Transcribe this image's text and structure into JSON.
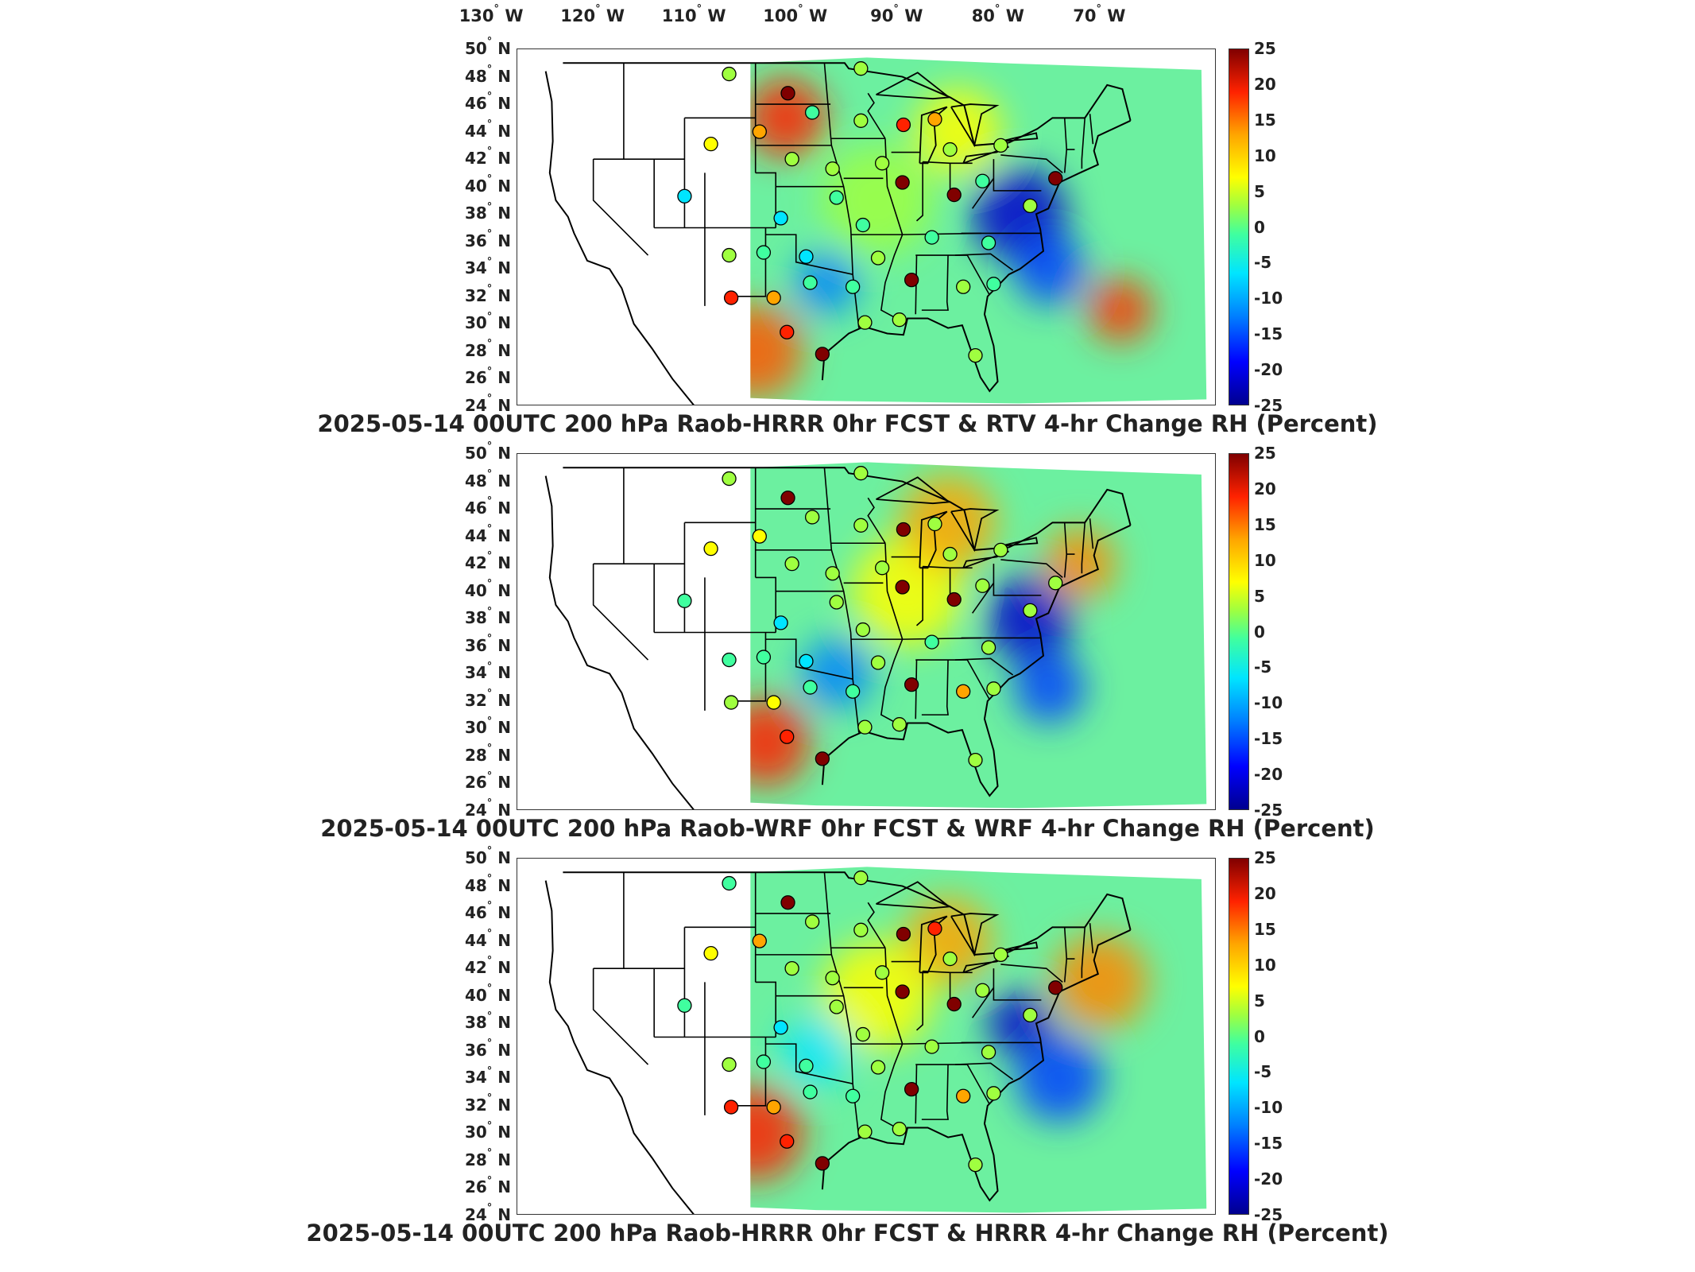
{
  "longitude_labels": [
    {
      "deg": "130",
      "hem": "W"
    },
    {
      "deg": "120",
      "hem": "W"
    },
    {
      "deg": "110",
      "hem": "W"
    },
    {
      "deg": "100",
      "hem": "W"
    },
    {
      "deg": "90",
      "hem": "W"
    },
    {
      "deg": "80",
      "hem": "W"
    },
    {
      "deg": "70",
      "hem": "W"
    }
  ],
  "latitude_labels": [
    {
      "deg": "50",
      "hem": "N"
    },
    {
      "deg": "48",
      "hem": "N"
    },
    {
      "deg": "46",
      "hem": "N"
    },
    {
      "deg": "44",
      "hem": "N"
    },
    {
      "deg": "42",
      "hem": "N"
    },
    {
      "deg": "40",
      "hem": "N"
    },
    {
      "deg": "38",
      "hem": "N"
    },
    {
      "deg": "36",
      "hem": "N"
    },
    {
      "deg": "34",
      "hem": "N"
    },
    {
      "deg": "32",
      "hem": "N"
    },
    {
      "deg": "30",
      "hem": "N"
    },
    {
      "deg": "28",
      "hem": "N"
    },
    {
      "deg": "26",
      "hem": "N"
    },
    {
      "deg": "24",
      "hem": "N"
    }
  ],
  "colorbar": {
    "ticks": [
      "25",
      "20",
      "15",
      "10",
      "5",
      "0",
      "-5",
      "-10",
      "-15",
      "-20",
      "-25"
    ],
    "min": -25,
    "max": 25,
    "colors": [
      "#00008f",
      "#0000ff",
      "#0080ff",
      "#00e5ff",
      "#40ff9f",
      "#9fff40",
      "#ffff00",
      "#ffa500",
      "#ff2200",
      "#800000"
    ]
  },
  "panels": [
    {
      "title": "2025-05-14 00UTC 200 hPa Raob-HRRR 0hr FCST & RTV 4-hr Change RH (Percent)",
      "stations": [
        {
          "lon": -106.6,
          "lat": 48.2,
          "v": 1
        },
        {
          "lon": -100.8,
          "lat": 46.8,
          "v": 22
        },
        {
          "lon": -98.4,
          "lat": 45.4,
          "v": -1
        },
        {
          "lon": -93.6,
          "lat": 48.6,
          "v": 0
        },
        {
          "lon": -93.6,
          "lat": 44.8,
          "v": 1
        },
        {
          "lon": -89.4,
          "lat": 44.5,
          "v": 19
        },
        {
          "lon": -86.3,
          "lat": 44.9,
          "v": 14
        },
        {
          "lon": -84.8,
          "lat": 42.7,
          "v": 0
        },
        {
          "lon": -79.8,
          "lat": 43.0,
          "v": 0
        },
        {
          "lon": -108.4,
          "lat": 43.1,
          "v": 8
        },
        {
          "lon": -103.6,
          "lat": 44.0,
          "v": 13
        },
        {
          "lon": -100.4,
          "lat": 42.0,
          "v": 0
        },
        {
          "lon": -96.4,
          "lat": 41.3,
          "v": 0
        },
        {
          "lon": -91.5,
          "lat": 41.7,
          "v": 1
        },
        {
          "lon": -89.5,
          "lat": 40.3,
          "v": 20
        },
        {
          "lon": -84.4,
          "lat": 39.4,
          "v": 24
        },
        {
          "lon": -81.6,
          "lat": 40.4,
          "v": -1
        },
        {
          "lon": -76.9,
          "lat": 38.6,
          "v": 0
        },
        {
          "lon": -111.0,
          "lat": 39.3,
          "v": -10
        },
        {
          "lon": -101.5,
          "lat": 37.7,
          "v": -7
        },
        {
          "lon": -96.0,
          "lat": 39.2,
          "v": -1
        },
        {
          "lon": -93.4,
          "lat": 37.2,
          "v": -2
        },
        {
          "lon": -86.6,
          "lat": 36.3,
          "v": -1
        },
        {
          "lon": -81.0,
          "lat": 35.9,
          "v": -2
        },
        {
          "lon": -106.6,
          "lat": 35.0,
          "v": 3
        },
        {
          "lon": -103.2,
          "lat": 35.2,
          "v": -3
        },
        {
          "lon": -99.0,
          "lat": 34.9,
          "v": -8
        },
        {
          "lon": -91.9,
          "lat": 34.8,
          "v": 3
        },
        {
          "lon": -98.6,
          "lat": 33.0,
          "v": -4
        },
        {
          "lon": -94.4,
          "lat": 32.7,
          "v": -3
        },
        {
          "lon": -88.6,
          "lat": 33.2,
          "v": 22
        },
        {
          "lon": -83.5,
          "lat": 32.7,
          "v": 0
        },
        {
          "lon": -80.5,
          "lat": 32.9,
          "v": -2
        },
        {
          "lon": -106.4,
          "lat": 31.9,
          "v": 18
        },
        {
          "lon": -102.2,
          "lat": 31.9,
          "v": 13
        },
        {
          "lon": -100.9,
          "lat": 29.4,
          "v": 18
        },
        {
          "lon": -97.4,
          "lat": 27.8,
          "v": 22
        },
        {
          "lon": -93.2,
          "lat": 30.1,
          "v": 0
        },
        {
          "lon": -89.8,
          "lat": 30.3,
          "v": 0
        },
        {
          "lon": -82.3,
          "lat": 27.7,
          "v": 0
        },
        {
          "lon": -74.4,
          "lat": 40.6,
          "v": 24
        }
      ]
    },
    {
      "title": "2025-05-14 00UTC 200 hPa Raob-WRF 0hr FCST & WRF 4-hr Change RH (Percent)",
      "stations": [
        {
          "lon": -106.6,
          "lat": 48.2,
          "v": 0
        },
        {
          "lon": -100.8,
          "lat": 46.8,
          "v": 21
        },
        {
          "lon": -98.4,
          "lat": 45.4,
          "v": 1
        },
        {
          "lon": -93.6,
          "lat": 48.6,
          "v": 0
        },
        {
          "lon": -93.6,
          "lat": 44.8,
          "v": 0
        },
        {
          "lon": -89.4,
          "lat": 44.5,
          "v": 21
        },
        {
          "lon": -86.3,
          "lat": 44.9,
          "v": 2
        },
        {
          "lon": -84.8,
          "lat": 42.7,
          "v": 0
        },
        {
          "lon": -79.8,
          "lat": 43.0,
          "v": 0
        },
        {
          "lon": -108.4,
          "lat": 43.1,
          "v": 6
        },
        {
          "lon": -103.6,
          "lat": 44.0,
          "v": 7
        },
        {
          "lon": -100.4,
          "lat": 42.0,
          "v": 0
        },
        {
          "lon": -96.4,
          "lat": 41.3,
          "v": 0
        },
        {
          "lon": -91.5,
          "lat": 41.7,
          "v": 1
        },
        {
          "lon": -89.5,
          "lat": 40.3,
          "v": 20
        },
        {
          "lon": -84.4,
          "lat": 39.4,
          "v": 24
        },
        {
          "lon": -81.6,
          "lat": 40.4,
          "v": 0
        },
        {
          "lon": -76.9,
          "lat": 38.6,
          "v": 0
        },
        {
          "lon": -111.0,
          "lat": 39.3,
          "v": -2
        },
        {
          "lon": -101.5,
          "lat": 37.7,
          "v": -7
        },
        {
          "lon": -96.0,
          "lat": 39.2,
          "v": 0
        },
        {
          "lon": -93.4,
          "lat": 37.2,
          "v": 3
        },
        {
          "lon": -86.6,
          "lat": 36.3,
          "v": -1
        },
        {
          "lon": -81.0,
          "lat": 35.9,
          "v": 0
        },
        {
          "lon": -106.6,
          "lat": 35.0,
          "v": -1
        },
        {
          "lon": -103.2,
          "lat": 35.2,
          "v": -2
        },
        {
          "lon": -99.0,
          "lat": 34.9,
          "v": -6
        },
        {
          "lon": -91.9,
          "lat": 34.8,
          "v": 1
        },
        {
          "lon": -98.6,
          "lat": 33.0,
          "v": -3
        },
        {
          "lon": -94.4,
          "lat": 32.7,
          "v": -4
        },
        {
          "lon": -88.6,
          "lat": 33.2,
          "v": 22
        },
        {
          "lon": -83.5,
          "lat": 32.7,
          "v": 11
        },
        {
          "lon": -80.5,
          "lat": 32.9,
          "v": 0
        },
        {
          "lon": -106.4,
          "lat": 31.9,
          "v": 2
        },
        {
          "lon": -102.2,
          "lat": 31.9,
          "v": 7
        },
        {
          "lon": -100.9,
          "lat": 29.4,
          "v": 18
        },
        {
          "lon": -97.4,
          "lat": 27.8,
          "v": 22
        },
        {
          "lon": -93.2,
          "lat": 30.1,
          "v": 0
        },
        {
          "lon": -89.8,
          "lat": 30.3,
          "v": 0
        },
        {
          "lon": -82.3,
          "lat": 27.7,
          "v": 0
        },
        {
          "lon": -74.4,
          "lat": 40.6,
          "v": 4
        }
      ]
    },
    {
      "title": "2025-05-14 00UTC 200 hPa Raob-HRRR 0hr FCST & HRRR 4-hr Change RH (Percent)",
      "stations": [
        {
          "lon": -106.6,
          "lat": 48.2,
          "v": -2
        },
        {
          "lon": -100.8,
          "lat": 46.8,
          "v": 22
        },
        {
          "lon": -98.4,
          "lat": 45.4,
          "v": 1
        },
        {
          "lon": -93.6,
          "lat": 48.6,
          "v": 0
        },
        {
          "lon": -93.6,
          "lat": 44.8,
          "v": 0
        },
        {
          "lon": -89.4,
          "lat": 44.5,
          "v": 20
        },
        {
          "lon": -86.3,
          "lat": 44.9,
          "v": 19
        },
        {
          "lon": -84.8,
          "lat": 42.7,
          "v": 1
        },
        {
          "lon": -79.8,
          "lat": 43.0,
          "v": 0
        },
        {
          "lon": -108.4,
          "lat": 43.1,
          "v": 7
        },
        {
          "lon": -103.6,
          "lat": 44.0,
          "v": 13
        },
        {
          "lon": -100.4,
          "lat": 42.0,
          "v": 0
        },
        {
          "lon": -96.4,
          "lat": 41.3,
          "v": 0
        },
        {
          "lon": -91.5,
          "lat": 41.7,
          "v": 1
        },
        {
          "lon": -89.5,
          "lat": 40.3,
          "v": 20
        },
        {
          "lon": -84.4,
          "lat": 39.4,
          "v": 24
        },
        {
          "lon": -81.6,
          "lat": 40.4,
          "v": 0
        },
        {
          "lon": -76.9,
          "lat": 38.6,
          "v": 0
        },
        {
          "lon": -111.0,
          "lat": 39.3,
          "v": -3
        },
        {
          "lon": -101.5,
          "lat": 37.7,
          "v": -6
        },
        {
          "lon": -96.0,
          "lat": 39.2,
          "v": 0
        },
        {
          "lon": -93.4,
          "lat": 37.2,
          "v": 2
        },
        {
          "lon": -86.6,
          "lat": 36.3,
          "v": 0
        },
        {
          "lon": -81.0,
          "lat": 35.9,
          "v": 0
        },
        {
          "lon": -106.6,
          "lat": 35.0,
          "v": 2
        },
        {
          "lon": -103.2,
          "lat": 35.2,
          "v": -1
        },
        {
          "lon": -99.0,
          "lat": 34.9,
          "v": -4
        },
        {
          "lon": -91.9,
          "lat": 34.8,
          "v": 1
        },
        {
          "lon": -98.6,
          "lat": 33.0,
          "v": -1
        },
        {
          "lon": -94.4,
          "lat": 32.7,
          "v": -1
        },
        {
          "lon": -88.6,
          "lat": 33.2,
          "v": 22
        },
        {
          "lon": -83.5,
          "lat": 32.7,
          "v": 11
        },
        {
          "lon": -80.5,
          "lat": 32.9,
          "v": 0
        },
        {
          "lon": -106.4,
          "lat": 31.9,
          "v": 18
        },
        {
          "lon": -102.2,
          "lat": 31.9,
          "v": 14
        },
        {
          "lon": -100.9,
          "lat": 29.4,
          "v": 19
        },
        {
          "lon": -97.4,
          "lat": 27.8,
          "v": 21
        },
        {
          "lon": -93.2,
          "lat": 30.1,
          "v": 0
        },
        {
          "lon": -89.8,
          "lat": 30.3,
          "v": 0
        },
        {
          "lon": -82.3,
          "lat": 27.7,
          "v": 0
        },
        {
          "lon": -74.4,
          "lat": 40.6,
          "v": 24
        }
      ]
    }
  ]
}
